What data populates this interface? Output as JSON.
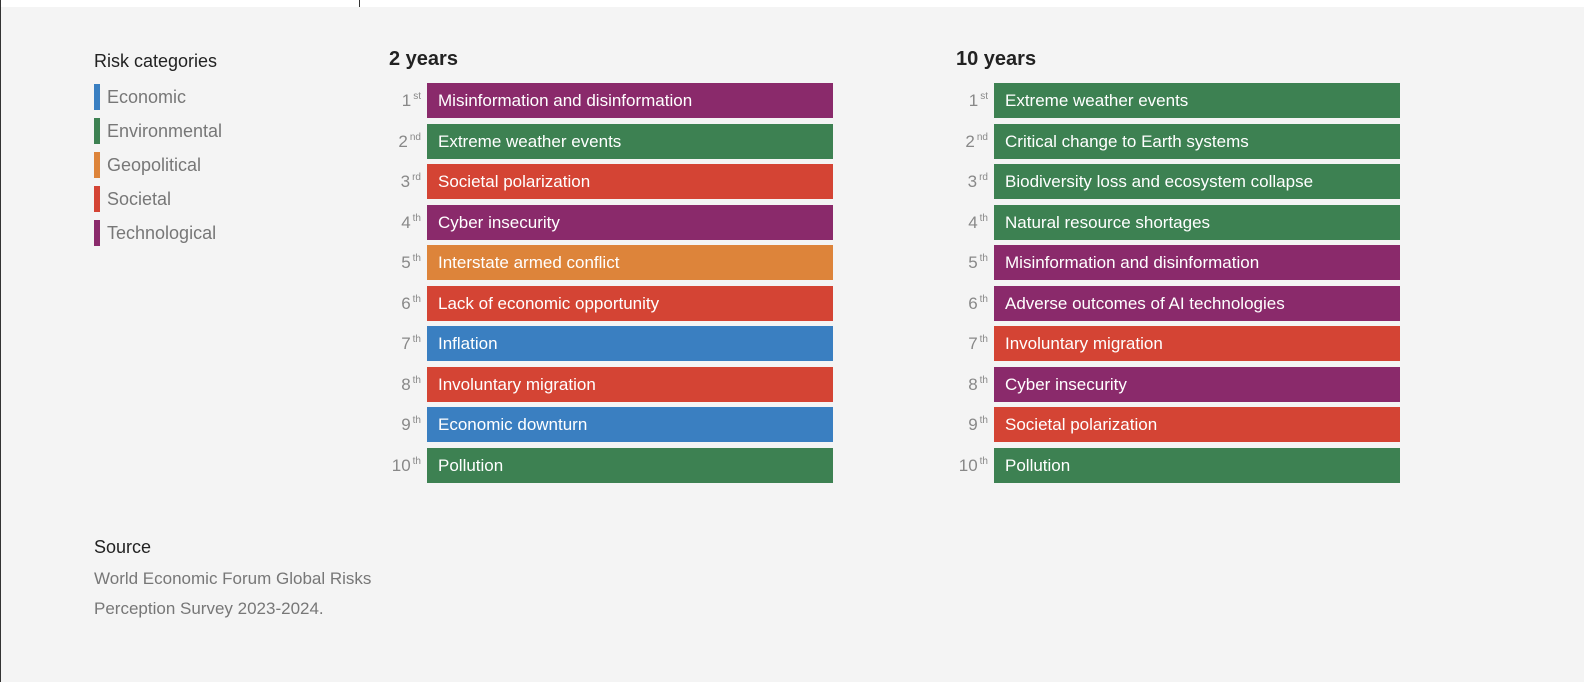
{
  "colors": {
    "Economic": "#3a7fc1",
    "Environmental": "#3d8152",
    "Geopolitical": "#dd843a",
    "Societal": "#d44434",
    "Technological": "#8a2a6b"
  },
  "legend": {
    "title": "Risk categories",
    "items": [
      "Economic",
      "Environmental",
      "Geopolitical",
      "Societal",
      "Technological"
    ]
  },
  "columns": [
    {
      "title": "2 years",
      "rows": [
        {
          "rank": "1",
          "suffix": "st",
          "label": "Misinformation and disinformation",
          "category": "Technological"
        },
        {
          "rank": "2",
          "suffix": "nd",
          "label": "Extreme weather events",
          "category": "Environmental"
        },
        {
          "rank": "3",
          "suffix": "rd",
          "label": "Societal polarization",
          "category": "Societal"
        },
        {
          "rank": "4",
          "suffix": "th",
          "label": "Cyber insecurity",
          "category": "Technological"
        },
        {
          "rank": "5",
          "suffix": "th",
          "label": "Interstate armed conflict",
          "category": "Geopolitical"
        },
        {
          "rank": "6",
          "suffix": "th",
          "label": "Lack of economic opportunity",
          "category": "Societal"
        },
        {
          "rank": "7",
          "suffix": "th",
          "label": "Inflation",
          "category": "Economic"
        },
        {
          "rank": "8",
          "suffix": "th",
          "label": "Involuntary migration",
          "category": "Societal"
        },
        {
          "rank": "9",
          "suffix": "th",
          "label": "Economic downturn",
          "category": "Economic"
        },
        {
          "rank": "10",
          "suffix": "th",
          "label": "Pollution",
          "category": "Environmental"
        }
      ]
    },
    {
      "title": "10 years",
      "rows": [
        {
          "rank": "1",
          "suffix": "st",
          "label": "Extreme weather events",
          "category": "Environmental"
        },
        {
          "rank": "2",
          "suffix": "nd",
          "label": "Critical change to Earth systems",
          "category": "Environmental"
        },
        {
          "rank": "3",
          "suffix": "rd",
          "label": "Biodiversity loss and ecosystem collapse",
          "category": "Environmental"
        },
        {
          "rank": "4",
          "suffix": "th",
          "label": "Natural resource shortages",
          "category": "Environmental"
        },
        {
          "rank": "5",
          "suffix": "th",
          "label": "Misinformation and disinformation",
          "category": "Technological"
        },
        {
          "rank": "6",
          "suffix": "th",
          "label": "Adverse outcomes of AI technologies",
          "category": "Technological"
        },
        {
          "rank": "7",
          "suffix": "th",
          "label": "Involuntary migration",
          "category": "Societal"
        },
        {
          "rank": "8",
          "suffix": "th",
          "label": "Cyber insecurity",
          "category": "Technological"
        },
        {
          "rank": "9",
          "suffix": "th",
          "label": "Societal polarization",
          "category": "Societal"
        },
        {
          "rank": "10",
          "suffix": "th",
          "label": "Pollution",
          "category": "Environmental"
        }
      ]
    }
  ],
  "source": {
    "title": "Source",
    "lines": [
      "World Economic Forum Global Risks",
      "Perception Survey 2023-2024."
    ]
  }
}
